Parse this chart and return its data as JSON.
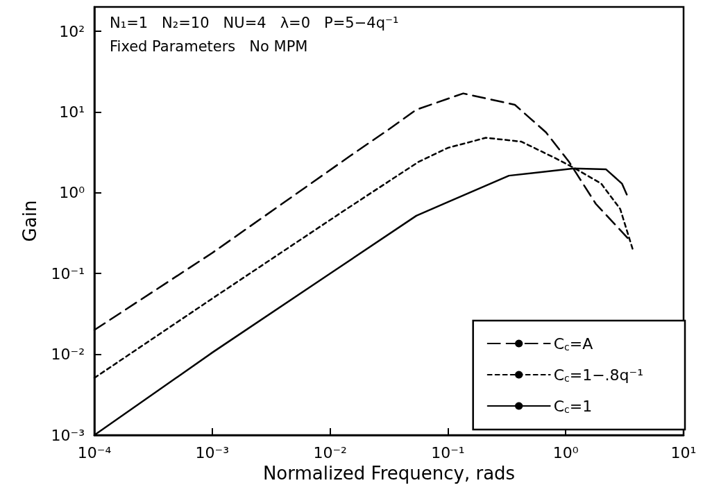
{
  "chart_data": {
    "type": "line",
    "xlabel": "Normalized Frequency, rads",
    "ylabel": "Gain",
    "annotations": [
      "N₁=1   N₂=10   NU=4   λ=0   P=5−4q⁻¹",
      "Fixed Parameters   No MPM"
    ],
    "log": "xy",
    "grid": false,
    "legend": "bottom right",
    "marker": "none",
    "xlim": [
      0.0001,
      10
    ],
    "ylim": [
      0.001,
      200
    ],
    "xticks": [
      {
        "value": 0.0001,
        "label": "10⁻⁴"
      },
      {
        "value": 0.001,
        "label": "10⁻³"
      },
      {
        "value": 0.01,
        "label": "10⁻²"
      },
      {
        "value": 0.1,
        "label": "10⁻¹"
      },
      {
        "value": 1,
        "label": "10⁰"
      },
      {
        "value": 10,
        "label": "10¹"
      }
    ],
    "yticks": [
      {
        "value": 0.001,
        "label": "10⁻³"
      },
      {
        "value": 0.01,
        "label": "10⁻²"
      },
      {
        "value": 0.1,
        "label": "10⁻¹"
      },
      {
        "value": 1,
        "label": "10⁰"
      },
      {
        "value": 10,
        "label": "10¹"
      },
      {
        "value": 100,
        "label": "10²"
      }
    ],
    "series": [
      {
        "name": "C$_{c}$=A",
        "color": "#000000",
        "line_style": "dashed",
        "x": [
          0.0001,
          0.001,
          0.015,
          0.03,
          0.054,
          0.135,
          0.37,
          0.68,
          1.07,
          1.8,
          3.4
        ],
        "values": [
          0.02,
          0.18,
          2.9,
          5.8,
          10.7,
          17,
          12.3,
          5.6,
          2.4,
          0.73,
          0.27
        ]
      },
      {
        "name": "C$_{c}$=1−.8q⁻¹",
        "color": "#000000",
        "line_style": "dotted",
        "x": [
          0.0001,
          0.001,
          0.0138,
          0.056,
          0.1,
          0.21,
          0.42,
          0.81,
          1.2,
          2.0,
          2.9,
          3.7
        ],
        "values": [
          0.0051,
          0.049,
          0.63,
          2.4,
          3.6,
          4.8,
          4.3,
          2.7,
          2.0,
          1.3,
          0.63,
          0.2
        ]
      },
      {
        "name": "C$_{c}$=1",
        "color": "#000000",
        "line_style": "solid",
        "x": [
          0.0001,
          0.001,
          0.01,
          0.054,
          0.1,
          0.33,
          1.17,
          2.2,
          3.0,
          3.3
        ],
        "values": [
          0.001,
          0.0105,
          0.1,
          0.52,
          0.77,
          1.63,
          2.0,
          1.95,
          1.3,
          0.95
        ]
      }
    ]
  }
}
